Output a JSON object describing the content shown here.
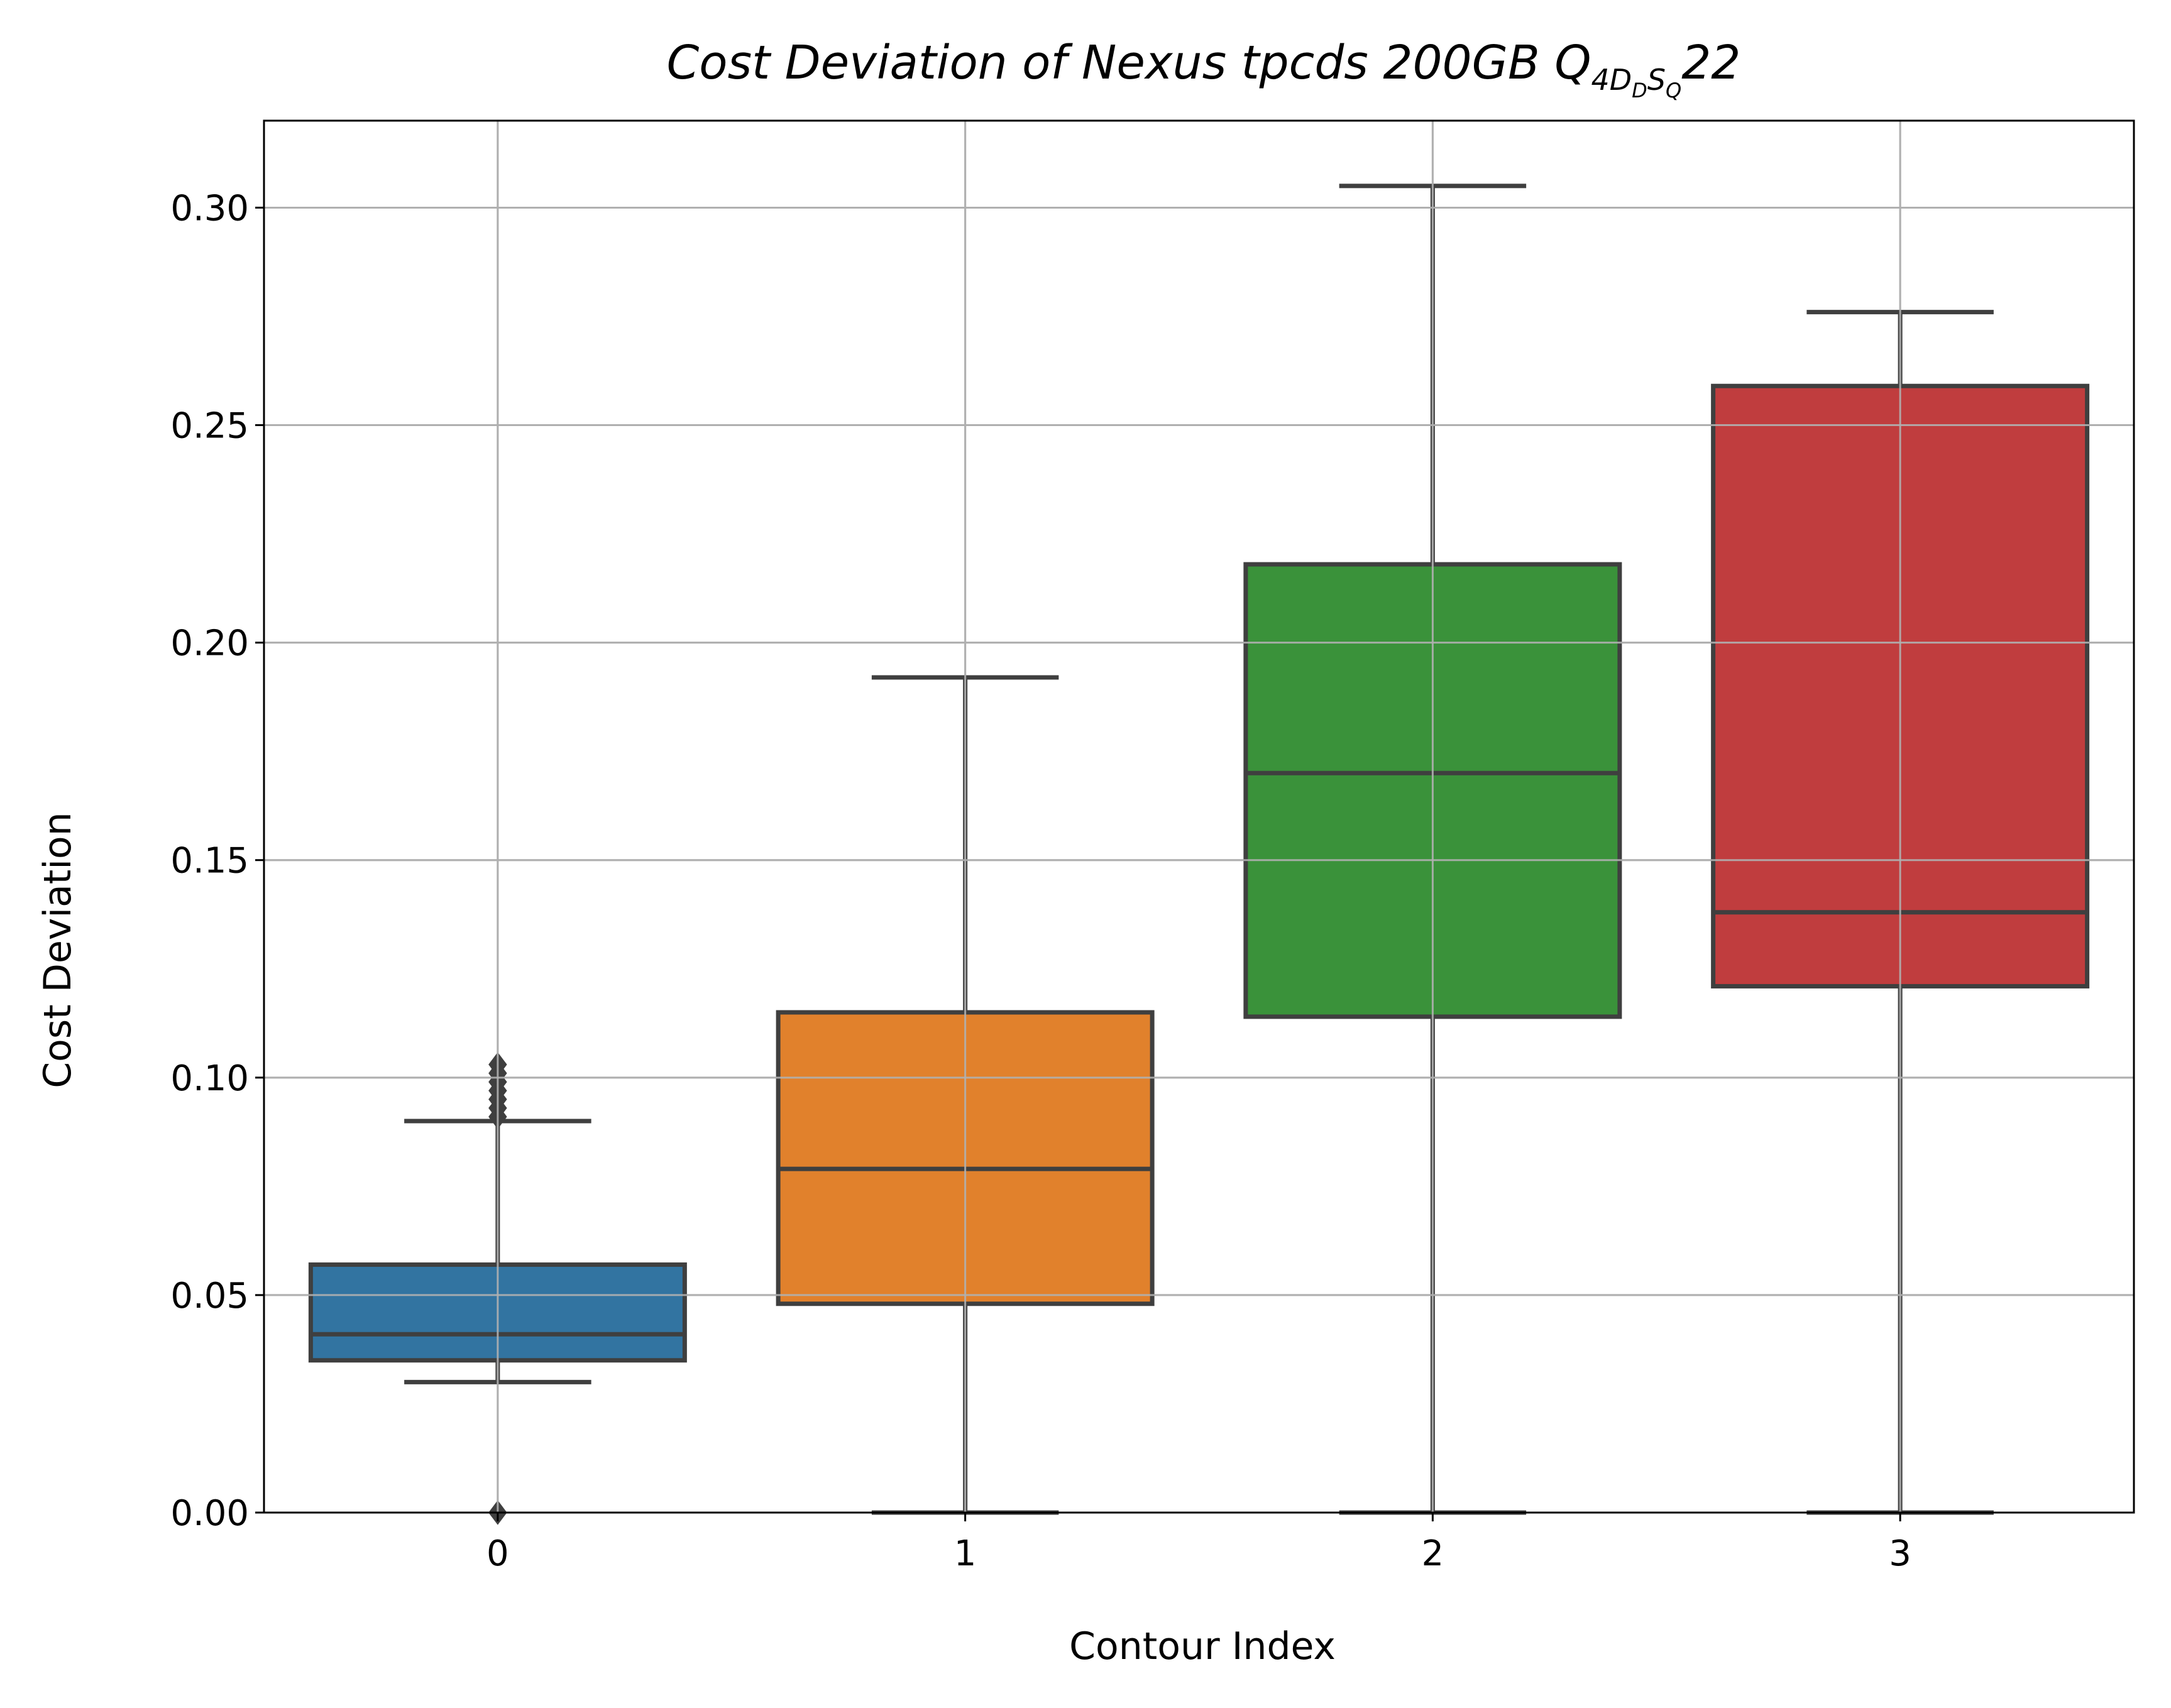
{
  "chart_data": {
    "type": "box",
    "title": {
      "main": "Cost Deviation of Nexus tpcds  200GB  Q",
      "sub1": "4D",
      "sub2": "D",
      "sub3": "S",
      "sub4": "Q",
      "tail": "22"
    },
    "xlabel": "Contour Index",
    "ylabel": "Cost Deviation",
    "ylim": [
      0,
      0.32
    ],
    "yticks": [
      "0.00",
      "0.05",
      "0.10",
      "0.15",
      "0.20",
      "0.25",
      "0.30"
    ],
    "grid": true,
    "categories": [
      "0",
      "1",
      "2",
      "3"
    ],
    "boxes": [
      {
        "category": "0",
        "whisker_low": 0.03,
        "q1": 0.035,
        "median": 0.041,
        "q3": 0.057,
        "whisker_high": 0.09,
        "fliers": [
          0.0,
          0.091,
          0.093,
          0.095,
          0.097,
          0.099,
          0.101,
          0.103
        ],
        "color": "#3274a1"
      },
      {
        "category": "1",
        "whisker_low": 0.0,
        "q1": 0.048,
        "median": 0.079,
        "q3": 0.115,
        "whisker_high": 0.192,
        "fliers": [],
        "color": "#e1812c"
      },
      {
        "category": "2",
        "whisker_low": 0.0,
        "q1": 0.114,
        "median": 0.17,
        "q3": 0.218,
        "whisker_high": 0.305,
        "fliers": [],
        "color": "#3a923a"
      },
      {
        "category": "3",
        "whisker_low": 0.0,
        "q1": 0.121,
        "median": 0.138,
        "q3": 0.259,
        "whisker_high": 0.276,
        "fliers": [],
        "color": "#c03d3e"
      }
    ]
  }
}
